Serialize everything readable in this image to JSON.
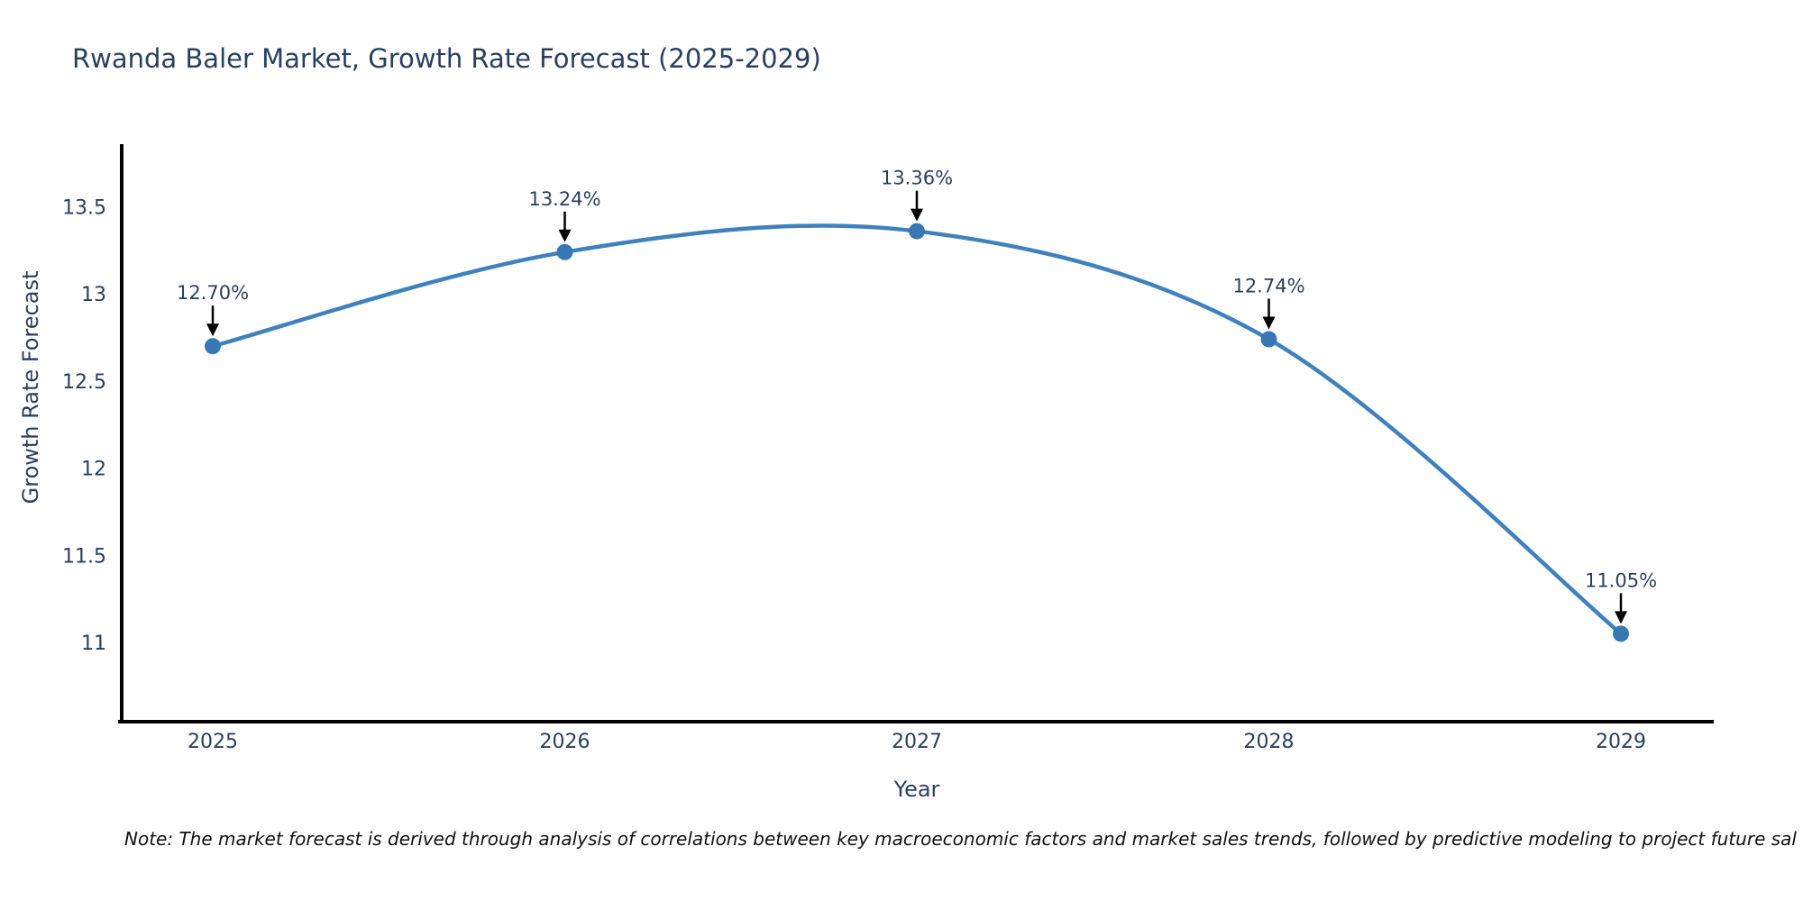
{
  "chart_data": {
    "type": "line",
    "line_shape": "spline",
    "title": "Rwanda Baler Market, Growth Rate Forecast (2025-2029)",
    "xlabel": "Year",
    "ylabel": "Growth Rate Forecast",
    "categories": [
      "2025",
      "2026",
      "2027",
      "2028",
      "2029"
    ],
    "series": [
      {
        "name": "Growth Rate Forecast",
        "values": [
          12.7,
          13.24,
          13.36,
          12.74,
          11.05
        ],
        "point_labels": [
          "12.70%",
          "13.24%",
          "13.36%",
          "12.74%",
          "11.05%"
        ]
      }
    ],
    "y_ticks": [
      "13.5",
      "13",
      "12.5",
      "12",
      "11.5",
      "11"
    ],
    "y_tick_values": [
      13.5,
      13,
      12.5,
      12,
      11.5,
      11
    ],
    "ylim": [
      10.55,
      13.86
    ],
    "grid": false,
    "legend": "none",
    "annotations_have_arrows": true,
    "colors": {
      "line": "#3f81bc",
      "marker": "#3778b4",
      "axis": "#000000",
      "text": "#2a3f5f",
      "arrow": "#000000",
      "background": "#ffffff"
    }
  },
  "note": {
    "text": "Note: The market forecast is derived through analysis of correlations between key macroeconomic factors and market sales trends, followed by predictive modeling to project future sal"
  }
}
